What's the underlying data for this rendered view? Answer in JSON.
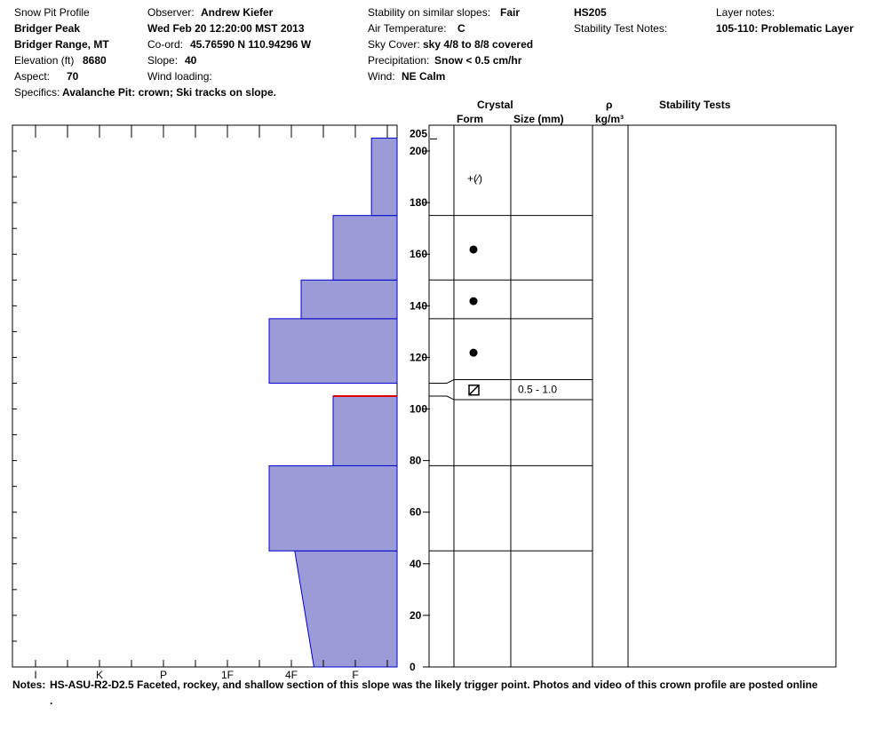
{
  "header": {
    "title": "Snow Pit Profile",
    "location": "Bridger Peak",
    "range": "Bridger Range, MT",
    "elevation_label": "Elevation (ft)",
    "elevation": "8680",
    "aspect_label": "Aspect:",
    "aspect": "70",
    "specifics_label": "Specifics:",
    "specifics": "Avalanche Pit: crown; Ski tracks on slope.",
    "observer_label": "Observer:",
    "observer": "Andrew Kiefer",
    "datetime": "Wed Feb 20 12:20:00 MST 2013",
    "coord_label": "Co-ord:",
    "coord": "45.76590 N 110.94296 W",
    "slope_label": "Slope:",
    "slope": "40",
    "wind_loading_label": "Wind loading:",
    "stability_label": "Stability on similar slopes:",
    "stability": "Fair",
    "air_temp_label": "Air Temperature:",
    "air_temp": "C",
    "sky_label": "Sky Cover:",
    "sky": "sky 4/8 to 8/8 covered",
    "precip_label": "Precipitation:",
    "precip": "Snow < 0.5 cm/hr",
    "wind_label": "Wind:",
    "wind": "NE Calm",
    "hs": "HS205",
    "stab_test_notes_label": "Stability Test Notes:",
    "layer_notes_label": "Layer notes:",
    "layer_notes": "105-110: Problematic Layer"
  },
  "columns": {
    "crystal": "Crystal",
    "form": "Form",
    "size": "Size (mm)",
    "rho": "ρ",
    "rho_unit": "kg/m³",
    "stability_tests": "Stability Tests"
  },
  "notes_label": "Notes:",
  "notes": "HS-ASU-R2-D2.5 Faceted, rockey, and shallow section of this slope was the likely trigger point. Photos and video of this crown profile are posted online",
  "notes_line2": ".",
  "colors": {
    "fill": "#9b9bd8",
    "stroke": "#0000cc",
    "crown": "#dd0000"
  },
  "chart_data": {
    "type": "area",
    "title": "",
    "xlabel": "",
    "ylabel": "",
    "hardness_scale": [
      "I",
      "K",
      "P",
      "1F",
      "4F",
      "F"
    ],
    "y_ticks": [
      0,
      20,
      40,
      60,
      80,
      100,
      120,
      140,
      160,
      180,
      200
    ],
    "y_extra_tick": "205",
    "ylim": [
      0,
      210
    ],
    "hs": 205,
    "layers": [
      {
        "bottom": 0,
        "top": 45,
        "hardness_bottom": 1.3,
        "hardness_top": 1.6,
        "form": "",
        "size": ""
      },
      {
        "bottom": 45,
        "top": 78,
        "hardness": 2.0,
        "form": "",
        "size": ""
      },
      {
        "bottom": 78,
        "top": 105,
        "hardness": 1.0,
        "form": "",
        "size": ""
      },
      {
        "bottom": 105,
        "top": 110,
        "hardness": 0.0,
        "form": "⊠",
        "size": "0.5 - 1.0"
      },
      {
        "bottom": 110,
        "top": 135,
        "hardness": 2.0,
        "form": "●",
        "size": ""
      },
      {
        "bottom": 135,
        "top": 150,
        "hardness": 1.5,
        "form": "●",
        "size": ""
      },
      {
        "bottom": 150,
        "top": 175,
        "hardness": 1.0,
        "form": "●",
        "size": ""
      },
      {
        "bottom": 175,
        "top": 205,
        "hardness": 0.4,
        "form": "+(⁄)",
        "size": ""
      }
    ],
    "crown_height": 105
  }
}
